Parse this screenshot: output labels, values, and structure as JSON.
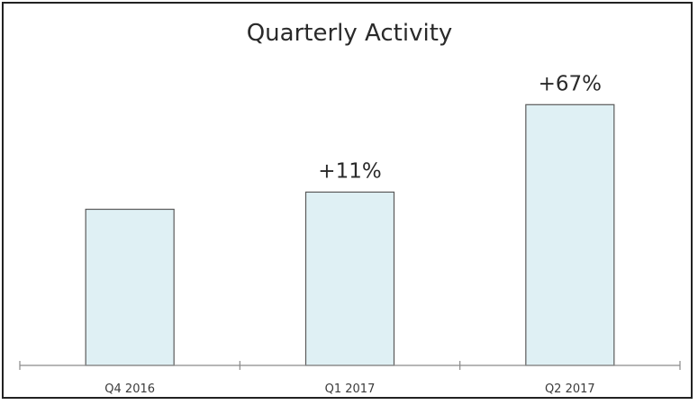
{
  "chart_data": {
    "type": "bar",
    "title": "Quarterly Activity",
    "categories": [
      "Q4 2016",
      "Q1 2017",
      "Q2 2017"
    ],
    "values": [
      1.0,
      1.11,
      1.67
    ],
    "data_labels": [
      "",
      "+11%",
      "+67%"
    ],
    "xlabel": "",
    "ylabel": "",
    "ylim": [
      0,
      1.81
    ],
    "grid": false,
    "legend": "none",
    "colors": {
      "bar_fill": "#dff0f4",
      "bar_stroke": "#5a5a5a",
      "axis": "#8a8a8a",
      "text": "#2a2a2a"
    }
  }
}
